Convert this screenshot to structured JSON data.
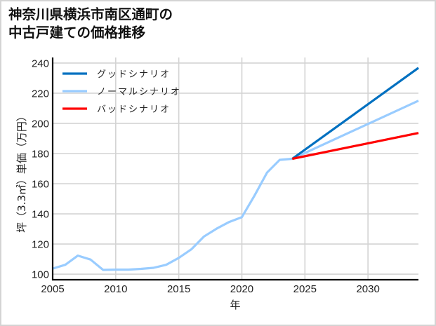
{
  "chart_data": {
    "type": "line",
    "title": "神奈川県横浜市南区通町の中古戸建ての価格推移",
    "title_lines": [
      "神奈川県横浜市南区通町の",
      "中古戸建ての価格推移"
    ],
    "xlabel": "年",
    "ylabel": "坪（3.3㎡）単価（万円）",
    "xlim": [
      2005,
      2034
    ],
    "ylim": [
      96.3,
      243.7
    ],
    "xticks": [
      2005,
      2010,
      2015,
      2020,
      2025,
      2030
    ],
    "yticks": [
      100,
      120,
      140,
      160,
      180,
      200,
      220,
      240
    ],
    "grid": true,
    "legend_position": "upper left",
    "series": [
      {
        "name": "グッドシナリオ",
        "color": "#0070c0",
        "x": [
          2024,
          2034
        ],
        "values": [
          176.5,
          236.8
        ]
      },
      {
        "name": "ノーマルシナリオ",
        "color": "#99ccff",
        "x": [
          2005,
          2006,
          2007,
          2008,
          2009,
          2010,
          2011,
          2012,
          2013,
          2014,
          2015,
          2016,
          2017,
          2018,
          2019,
          2020,
          2021,
          2022,
          2023,
          2024,
          2034
        ],
        "values": [
          103.7,
          106.2,
          112.3,
          109.7,
          102.8,
          103.0,
          103.0,
          103.5,
          104.2,
          106.2,
          110.8,
          116.5,
          125.0,
          130.2,
          134.6,
          137.8,
          152.0,
          167.4,
          175.8,
          176.5,
          215.0
        ]
      },
      {
        "name": "バッドシナリオ",
        "color": "#ff0000",
        "x": [
          2024,
          2034
        ],
        "values": [
          176.5,
          193.6
        ]
      }
    ]
  }
}
